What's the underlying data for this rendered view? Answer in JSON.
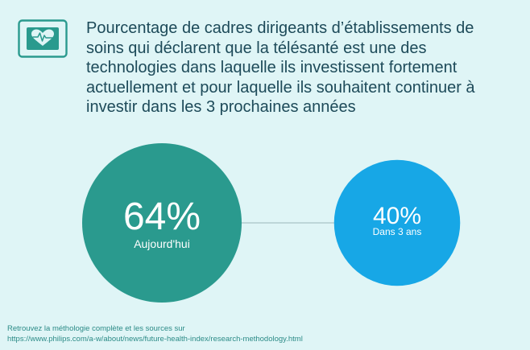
{
  "title": "Pourcentage de cadres dirigeants d’établissements de soins qui déclarent que la télésanté est une des technologies dans laquelle ils investissent fortement actuellement et pour laquelle ils souhaitent continuer à investir dans les 3 prochaines années",
  "icon": "heart-monitor-icon",
  "chart_data": {
    "type": "bubble",
    "title": "",
    "unit": "%",
    "items": [
      {
        "value": 64,
        "label": "64%",
        "sublabel": "Aujourd'hui",
        "color": "#2a9a8e"
      },
      {
        "value": 40,
        "label": "40%",
        "sublabel": "Dans 3 ans",
        "color": "#17a7e6"
      }
    ],
    "connector_color": "#a9c4c6"
  },
  "footnote": {
    "line1": "Retrouvez la méthologie complète et les sources sur",
    "line2": "https://www.philips.com/a-w/about/news/future-health-index/research-methodology.html"
  },
  "colors": {
    "background": "#dff5f6",
    "title_text": "#1d4a59",
    "icon_outline": "#2a9a8e",
    "footnote_text": "#2c8b87"
  }
}
